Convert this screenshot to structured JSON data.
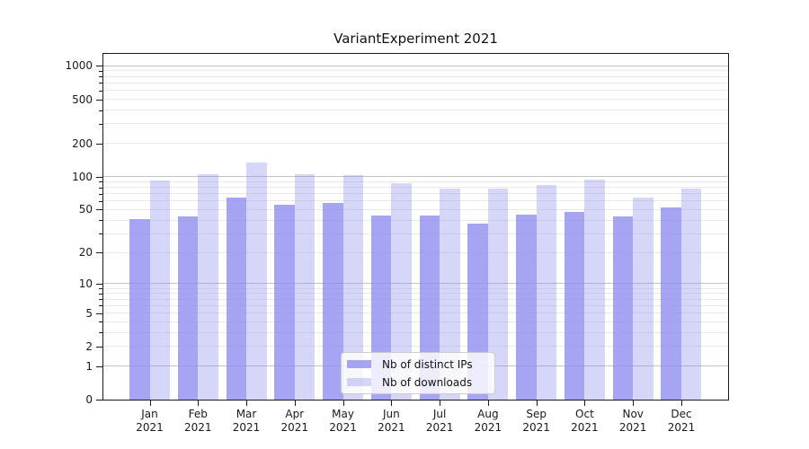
{
  "chart_data": {
    "type": "bar",
    "title": "VariantExperiment 2021",
    "categories": [
      "Jan 2021",
      "Feb 2021",
      "Mar 2021",
      "Apr 2021",
      "May 2021",
      "Jun 2021",
      "Jul 2021",
      "Aug 2021",
      "Sep 2021",
      "Oct 2021",
      "Nov 2021",
      "Dec 2021"
    ],
    "series": [
      {
        "name": "Nb of distinct IPs",
        "color_rgb": "140,140,238",
        "alpha": 0.78,
        "values": [
          41,
          43,
          65,
          55,
          58,
          44,
          44,
          37,
          45,
          48,
          43,
          52
        ]
      },
      {
        "name": "Nb of downloads",
        "color_rgb": "140,140,238",
        "alpha": 0.36,
        "values": [
          93,
          105,
          135,
          105,
          103,
          87,
          78,
          78,
          84,
          94,
          64,
          78
        ]
      }
    ],
    "y_ticks": [
      0,
      1,
      2,
      5,
      10,
      20,
      50,
      100,
      200,
      500,
      1000
    ],
    "y_scale": "symlog (position proportional to log1p of value)",
    "ylim": [
      0,
      1283
    ],
    "xlabel": "",
    "ylabel": "",
    "grid": "both (major gridlines at 1,10,100,1000; minor at 2-9 per decade)",
    "legend_position": "lower center",
    "colors": {
      "bar_dark_rendered": "#a5a5f1",
      "bar_light_rendered": "#d5d5f7",
      "major_grid": "#c3c3c3",
      "minor_grid": "#e9e9e9",
      "axis": "#1a1a1a",
      "legend_border": "#cccccc"
    }
  }
}
